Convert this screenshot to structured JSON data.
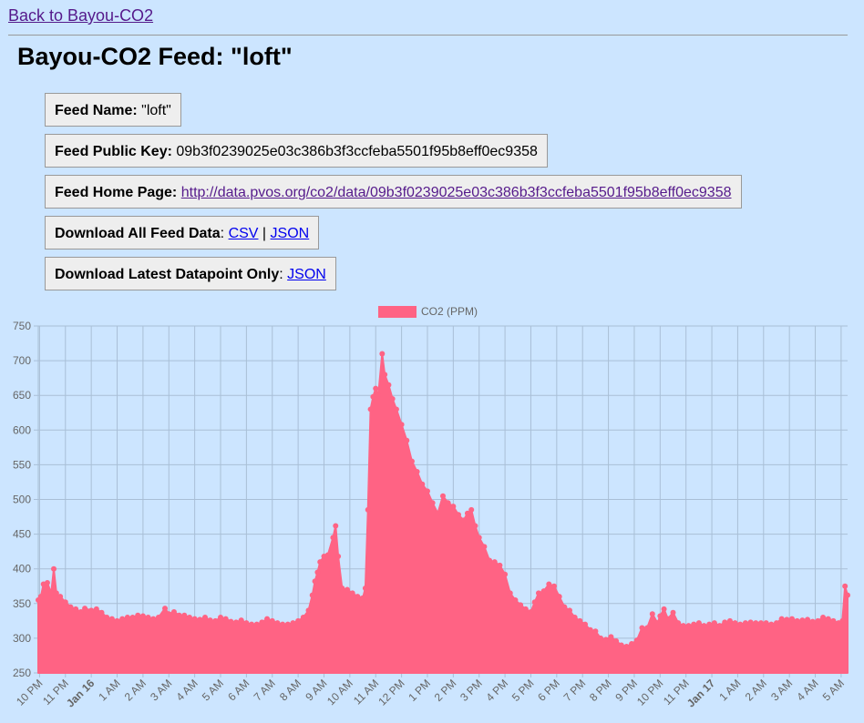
{
  "nav": {
    "back_label": "Back to Bayou-CO2"
  },
  "page": {
    "title": "Bayou-CO2 Feed: \"loft\""
  },
  "info": {
    "feed_name_label": "Feed Name:",
    "feed_name_value": "\"loft\"",
    "public_key_label": "Feed Public Key:",
    "public_key_value": "09b3f0239025e03c386b3f3ccfeba5501f95b8eff0ec9358",
    "home_page_label": "Feed Home Page:",
    "home_page_url": "http://data.pvos.org/co2/data/09b3f0239025e03c386b3f3ccfeba5501f95b8eff0ec9358",
    "download_all_label": "Download All Feed Data",
    "download_all_sep": ":",
    "csv_label": "CSV",
    "pipe": "|",
    "json_label": "JSON",
    "download_latest_label": "Download Latest Datapoint Only",
    "download_latest_sep": ":",
    "latest_json_label": "JSON"
  },
  "colors": {
    "series": "#ff6384",
    "background": "#cce5ff",
    "grid": "#a9bfd6"
  },
  "chart_data": {
    "type": "area",
    "legend": {
      "position": "top",
      "entries": [
        "CO2 (PPM)"
      ]
    },
    "series": [
      {
        "name": "CO2 (PPM)"
      }
    ],
    "ylim": [
      250,
      750
    ],
    "yticks": [
      250,
      300,
      350,
      400,
      450,
      500,
      550,
      600,
      650,
      700,
      750
    ],
    "xlim_hours": [
      21.95,
      53.25
    ],
    "xticks": [
      {
        "h": 22,
        "label": "10 PM",
        "bold": false
      },
      {
        "h": 23,
        "label": "11 PM",
        "bold": false
      },
      {
        "h": 24,
        "label": "Jan 16",
        "bold": true
      },
      {
        "h": 25,
        "label": "1 AM",
        "bold": false
      },
      {
        "h": 26,
        "label": "2 AM",
        "bold": false
      },
      {
        "h": 27,
        "label": "3 AM",
        "bold": false
      },
      {
        "h": 28,
        "label": "4 AM",
        "bold": false
      },
      {
        "h": 29,
        "label": "5 AM",
        "bold": false
      },
      {
        "h": 30,
        "label": "6 AM",
        "bold": false
      },
      {
        "h": 31,
        "label": "7 AM",
        "bold": false
      },
      {
        "h": 32,
        "label": "8 AM",
        "bold": false
      },
      {
        "h": 33,
        "label": "9 AM",
        "bold": false
      },
      {
        "h": 34,
        "label": "10 AM",
        "bold": false
      },
      {
        "h": 35,
        "label": "11 AM",
        "bold": false
      },
      {
        "h": 36,
        "label": "12 PM",
        "bold": false
      },
      {
        "h": 37,
        "label": "1 PM",
        "bold": false
      },
      {
        "h": 38,
        "label": "2 PM",
        "bold": false
      },
      {
        "h": 39,
        "label": "3 PM",
        "bold": false
      },
      {
        "h": 40,
        "label": "4 PM",
        "bold": false
      },
      {
        "h": 41,
        "label": "5 PM",
        "bold": false
      },
      {
        "h": 42,
        "label": "6 PM",
        "bold": false
      },
      {
        "h": 43,
        "label": "7 PM",
        "bold": false
      },
      {
        "h": 44,
        "label": "8 PM",
        "bold": false
      },
      {
        "h": 45,
        "label": "9 PM",
        "bold": false
      },
      {
        "h": 46,
        "label": "10 PM",
        "bold": false
      },
      {
        "h": 47,
        "label": "11 PM",
        "bold": false
      },
      {
        "h": 48,
        "label": "Jan 17",
        "bold": true
      },
      {
        "h": 49,
        "label": "1 AM",
        "bold": false
      },
      {
        "h": 50,
        "label": "2 AM",
        "bold": false
      },
      {
        "h": 51,
        "label": "3 AM",
        "bold": false
      },
      {
        "h": 52,
        "label": "4 AM",
        "bold": false
      },
      {
        "h": 53,
        "label": "5 AM",
        "bold": false
      }
    ],
    "points": [
      [
        21.95,
        355
      ],
      [
        22.05,
        360
      ],
      [
        22.15,
        378
      ],
      [
        22.3,
        380
      ],
      [
        22.45,
        365
      ],
      [
        22.55,
        400
      ],
      [
        22.65,
        365
      ],
      [
        22.8,
        360
      ],
      [
        23.0,
        352
      ],
      [
        23.2,
        345
      ],
      [
        23.4,
        342
      ],
      [
        23.6,
        338
      ],
      [
        23.75,
        343
      ],
      [
        24.0,
        340
      ],
      [
        24.2,
        342
      ],
      [
        24.4,
        337
      ],
      [
        24.6,
        330
      ],
      [
        24.8,
        328
      ],
      [
        25.0,
        325
      ],
      [
        25.2,
        328
      ],
      [
        25.4,
        330
      ],
      [
        25.6,
        330
      ],
      [
        25.8,
        333
      ],
      [
        26.0,
        332
      ],
      [
        26.2,
        330
      ],
      [
        26.4,
        328
      ],
      [
        26.6,
        330
      ],
      [
        26.85,
        343
      ],
      [
        27.0,
        335
      ],
      [
        27.2,
        338
      ],
      [
        27.4,
        333
      ],
      [
        27.6,
        333
      ],
      [
        27.8,
        330
      ],
      [
        28.0,
        328
      ],
      [
        28.2,
        327
      ],
      [
        28.4,
        330
      ],
      [
        28.6,
        326
      ],
      [
        28.8,
        325
      ],
      [
        29.0,
        330
      ],
      [
        29.2,
        328
      ],
      [
        29.4,
        324
      ],
      [
        29.6,
        323
      ],
      [
        29.8,
        326
      ],
      [
        30.0,
        322
      ],
      [
        30.2,
        320
      ],
      [
        30.4,
        320
      ],
      [
        30.6,
        323
      ],
      [
        30.8,
        328
      ],
      [
        31.0,
        325
      ],
      [
        31.2,
        322
      ],
      [
        31.4,
        320
      ],
      [
        31.6,
        320
      ],
      [
        31.8,
        322
      ],
      [
        32.0,
        325
      ],
      [
        32.2,
        330
      ],
      [
        32.4,
        340
      ],
      [
        32.55,
        362
      ],
      [
        32.65,
        382
      ],
      [
        32.75,
        395
      ],
      [
        32.85,
        410
      ],
      [
        33.0,
        418
      ],
      [
        33.15,
        420
      ],
      [
        33.35,
        445
      ],
      [
        33.45,
        462
      ],
      [
        33.55,
        418
      ],
      [
        33.7,
        372
      ],
      [
        33.9,
        370
      ],
      [
        34.1,
        365
      ],
      [
        34.3,
        360
      ],
      [
        34.5,
        358
      ],
      [
        34.6,
        372
      ],
      [
        34.7,
        485
      ],
      [
        34.8,
        630
      ],
      [
        34.9,
        648
      ],
      [
        35.0,
        660
      ],
      [
        35.1,
        650
      ],
      [
        35.25,
        710
      ],
      [
        35.35,
        680
      ],
      [
        35.5,
        665
      ],
      [
        35.65,
        645
      ],
      [
        35.8,
        630
      ],
      [
        36.0,
        608
      ],
      [
        36.2,
        585
      ],
      [
        36.4,
        555
      ],
      [
        36.6,
        540
      ],
      [
        36.8,
        522
      ],
      [
        37.0,
        512
      ],
      [
        37.2,
        495
      ],
      [
        37.4,
        480
      ],
      [
        37.6,
        505
      ],
      [
        37.8,
        495
      ],
      [
        38.0,
        490
      ],
      [
        38.2,
        478
      ],
      [
        38.4,
        470
      ],
      [
        38.55,
        480
      ],
      [
        38.7,
        485
      ],
      [
        38.85,
        462
      ],
      [
        39.0,
        445
      ],
      [
        39.2,
        432
      ],
      [
        39.4,
        412
      ],
      [
        39.6,
        410
      ],
      [
        39.8,
        405
      ],
      [
        40.0,
        392
      ],
      [
        40.2,
        365
      ],
      [
        40.4,
        355
      ],
      [
        40.6,
        348
      ],
      [
        40.8,
        342
      ],
      [
        41.0,
        338
      ],
      [
        41.15,
        352
      ],
      [
        41.3,
        365
      ],
      [
        41.5,
        368
      ],
      [
        41.7,
        378
      ],
      [
        41.9,
        375
      ],
      [
        42.1,
        360
      ],
      [
        42.3,
        345
      ],
      [
        42.5,
        340
      ],
      [
        42.7,
        330
      ],
      [
        42.9,
        325
      ],
      [
        43.1,
        320
      ],
      [
        43.3,
        312
      ],
      [
        43.5,
        310
      ],
      [
        43.7,
        300
      ],
      [
        43.9,
        298
      ],
      [
        44.1,
        302
      ],
      [
        44.3,
        296
      ],
      [
        44.5,
        290
      ],
      [
        44.7,
        288
      ],
      [
        44.9,
        292
      ],
      [
        45.1,
        297
      ],
      [
        45.3,
        315
      ],
      [
        45.5,
        315
      ],
      [
        45.7,
        335
      ],
      [
        45.9,
        322
      ],
      [
        46.0,
        332
      ],
      [
        46.15,
        342
      ],
      [
        46.3,
        328
      ],
      [
        46.5,
        337
      ],
      [
        46.7,
        322
      ],
      [
        46.9,
        318
      ],
      [
        47.1,
        318
      ],
      [
        47.3,
        320
      ],
      [
        47.5,
        322
      ],
      [
        47.7,
        318
      ],
      [
        47.9,
        320
      ],
      [
        48.1,
        322
      ],
      [
        48.3,
        318
      ],
      [
        48.5,
        323
      ],
      [
        48.7,
        325
      ],
      [
        48.9,
        322
      ],
      [
        49.1,
        320
      ],
      [
        49.3,
        322
      ],
      [
        49.5,
        323
      ],
      [
        49.7,
        322
      ],
      [
        49.9,
        322
      ],
      [
        50.1,
        322
      ],
      [
        50.3,
        320
      ],
      [
        50.5,
        322
      ],
      [
        50.7,
        328
      ],
      [
        50.9,
        327
      ],
      [
        51.1,
        328
      ],
      [
        51.3,
        325
      ],
      [
        51.5,
        326
      ],
      [
        51.7,
        327
      ],
      [
        51.9,
        324
      ],
      [
        52.1,
        325
      ],
      [
        52.3,
        330
      ],
      [
        52.5,
        328
      ],
      [
        52.7,
        325
      ],
      [
        52.9,
        322
      ],
      [
        53.05,
        325
      ],
      [
        53.15,
        375
      ],
      [
        53.25,
        362
      ]
    ]
  }
}
